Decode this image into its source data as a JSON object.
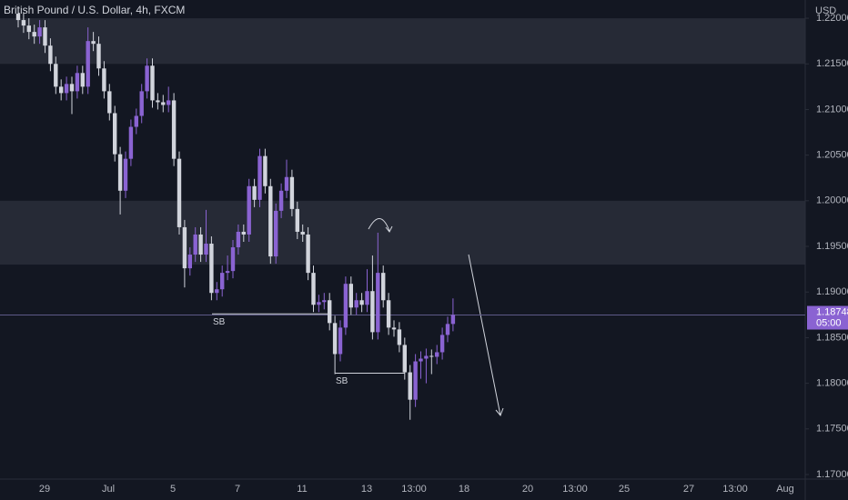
{
  "chart_data": {
    "type": "candlestick",
    "title": "British Pound / U.S. Dollar, 4h, FXCM",
    "currency": "USD",
    "up_color": "#8a63d2",
    "down_color": "#d1d4dc",
    "ylim": [
      1.1695,
      1.222
    ],
    "yticks": [
      {
        "value": 1.17,
        "label": "1.17000"
      },
      {
        "value": 1.175,
        "label": "1.17500"
      },
      {
        "value": 1.18,
        "label": "1.18000"
      },
      {
        "value": 1.185,
        "label": "1.18500"
      },
      {
        "value": 1.19,
        "label": "1.19000"
      },
      {
        "value": 1.195,
        "label": "1.19500"
      },
      {
        "value": 1.2,
        "label": "1.20000"
      },
      {
        "value": 1.205,
        "label": "1.20500"
      },
      {
        "value": 1.21,
        "label": "1.21000"
      },
      {
        "value": 1.215,
        "label": "1.21500"
      },
      {
        "value": 1.22,
        "label": "1.22000"
      }
    ],
    "x_labels": [
      "29",
      "Jul",
      "5",
      "7",
      "11",
      "13",
      "13:00",
      "18",
      "20",
      "13:00",
      "25",
      "27",
      "13:00",
      "Aug"
    ],
    "zones": [
      [
        1.215,
        1.22
      ],
      [
        1.193,
        1.2
      ]
    ],
    "sb_levels": [
      {
        "label": "SB",
        "level": 1.1876
      },
      {
        "label": "SB",
        "level": 1.1811
      }
    ],
    "last_price": {
      "value": 1.18748,
      "label": "1.18748"
    },
    "countdown": "05:00",
    "candles": [
      [
        1.2205,
        1.2213,
        1.219,
        1.2198
      ],
      [
        1.2198,
        1.2206,
        1.2184,
        1.2192
      ],
      [
        1.2192,
        1.22,
        1.2177,
        1.2185
      ],
      [
        1.2185,
        1.2193,
        1.2172,
        1.218
      ],
      [
        1.218,
        1.2198,
        1.2172,
        1.219
      ],
      [
        1.219,
        1.2198,
        1.2162,
        1.217
      ],
      [
        1.217,
        1.2178,
        1.2142,
        1.215
      ],
      [
        1.215,
        1.2158,
        1.2117,
        1.2125
      ],
      [
        1.2125,
        1.2133,
        1.211,
        1.2118
      ],
      [
        1.2118,
        1.2136,
        1.211,
        1.2128
      ],
      [
        1.2128,
        1.2136,
        1.2095,
        1.212
      ],
      [
        1.212,
        1.2148,
        1.2112,
        1.214
      ],
      [
        1.214,
        1.2148,
        1.2117,
        1.2125
      ],
      [
        1.2125,
        1.219,
        1.2117,
        1.2175
      ],
      [
        1.2175,
        1.2185,
        1.2164,
        1.2172
      ],
      [
        1.2172,
        1.218,
        1.2137,
        1.2145
      ],
      [
        1.2145,
        1.2153,
        1.2112,
        1.212
      ],
      [
        1.212,
        1.2128,
        1.2088,
        1.2096
      ],
      [
        1.2096,
        1.2104,
        1.2043,
        1.2051
      ],
      [
        1.2051,
        1.2059,
        1.1985,
        1.2011
      ],
      [
        1.2011,
        1.2054,
        1.2003,
        1.2046
      ],
      [
        1.2046,
        1.2089,
        1.2038,
        1.2081
      ],
      [
        1.2081,
        1.2101,
        1.2073,
        1.2093
      ],
      [
        1.2093,
        1.2128,
        1.2085,
        1.212
      ],
      [
        1.212,
        1.2156,
        1.2112,
        1.2148
      ],
      [
        1.2148,
        1.2156,
        1.2102,
        1.211
      ],
      [
        1.211,
        1.2118,
        1.21,
        1.2108
      ],
      [
        1.2108,
        1.2116,
        1.2097,
        1.2105
      ],
      [
        1.2105,
        1.2125,
        1.2097,
        1.211
      ],
      [
        1.211,
        1.2118,
        1.2038,
        1.2046
      ],
      [
        1.2046,
        1.2054,
        1.1963,
        1.1971
      ],
      [
        1.1971,
        1.1979,
        1.1905,
        1.1926
      ],
      [
        1.1926,
        1.1949,
        1.1918,
        1.1941
      ],
      [
        1.1941,
        1.1971,
        1.1933,
        1.1963
      ],
      [
        1.1963,
        1.1971,
        1.1933,
        1.1941
      ],
      [
        1.1941,
        1.199,
        1.1933,
        1.1953
      ],
      [
        1.1953,
        1.1961,
        1.1891,
        1.1899
      ],
      [
        1.1899,
        1.1911,
        1.1891,
        1.1903
      ],
      [
        1.1903,
        1.1929,
        1.1895,
        1.1921
      ],
      [
        1.1921,
        1.194,
        1.1913,
        1.1923
      ],
      [
        1.1923,
        1.1957,
        1.1915,
        1.1949
      ],
      [
        1.1949,
        1.1974,
        1.1941,
        1.1966
      ],
      [
        1.1966,
        1.1974,
        1.1955,
        1.1963
      ],
      [
        1.1963,
        1.2024,
        1.1955,
        1.2016
      ],
      [
        1.2016,
        1.2024,
        1.1993,
        1.2001
      ],
      [
        1.2001,
        1.2057,
        1.1993,
        1.2049
      ],
      [
        1.2049,
        1.2057,
        1.2008,
        1.2016
      ],
      [
        1.2016,
        1.2024,
        1.1931,
        1.1939
      ],
      [
        1.1939,
        1.1997,
        1.1931,
        1.1989
      ],
      [
        1.1989,
        1.2019,
        1.1981,
        1.2011
      ],
      [
        1.2011,
        1.2045,
        1.2003,
        1.2026
      ],
      [
        1.2026,
        1.2034,
        1.1983,
        1.1991
      ],
      [
        1.1991,
        1.1999,
        1.1958,
        1.1966
      ],
      [
        1.1966,
        1.1974,
        1.1955,
        1.1963
      ],
      [
        1.1963,
        1.1971,
        1.1913,
        1.1921
      ],
      [
        1.1921,
        1.1929,
        1.1878,
        1.1886
      ],
      [
        1.1886,
        1.1897,
        1.1878,
        1.1889
      ],
      [
        1.1889,
        1.1899,
        1.1881,
        1.1891
      ],
      [
        1.1891,
        1.1899,
        1.1858,
        1.1866
      ],
      [
        1.1866,
        1.1874,
        1.181,
        1.1832
      ],
      [
        1.1832,
        1.1869,
        1.1824,
        1.1861
      ],
      [
        1.1861,
        1.1917,
        1.1853,
        1.1909
      ],
      [
        1.1909,
        1.1917,
        1.1875,
        1.1883
      ],
      [
        1.1883,
        1.1899,
        1.1875,
        1.1891
      ],
      [
        1.1891,
        1.1899,
        1.1878,
        1.1886
      ],
      [
        1.1886,
        1.1925,
        1.1878,
        1.1901
      ],
      [
        1.1901,
        1.194,
        1.1848,
        1.1856
      ],
      [
        1.1856,
        1.1965,
        1.1848,
        1.1921
      ],
      [
        1.1921,
        1.1929,
        1.1883,
        1.1891
      ],
      [
        1.1891,
        1.1899,
        1.1853,
        1.1861
      ],
      [
        1.1861,
        1.1869,
        1.1851,
        1.1859
      ],
      [
        1.1859,
        1.1867,
        1.1834,
        1.1842
      ],
      [
        1.1842,
        1.185,
        1.1804,
        1.1812
      ],
      [
        1.1812,
        1.182,
        1.176,
        1.1782
      ],
      [
        1.1782,
        1.1832,
        1.1774,
        1.1824
      ],
      [
        1.1824,
        1.1835,
        1.1805,
        1.1827
      ],
      [
        1.1827,
        1.1838,
        1.18,
        1.183
      ],
      [
        1.183,
        1.1837,
        1.181,
        1.1829
      ],
      [
        1.1829,
        1.1842,
        1.1821,
        1.1834
      ],
      [
        1.1834,
        1.1861,
        1.1826,
        1.1853
      ],
      [
        1.1853,
        1.1873,
        1.1845,
        1.1865
      ],
      [
        1.1865,
        1.1893,
        1.1857,
        1.1875
      ]
    ]
  }
}
